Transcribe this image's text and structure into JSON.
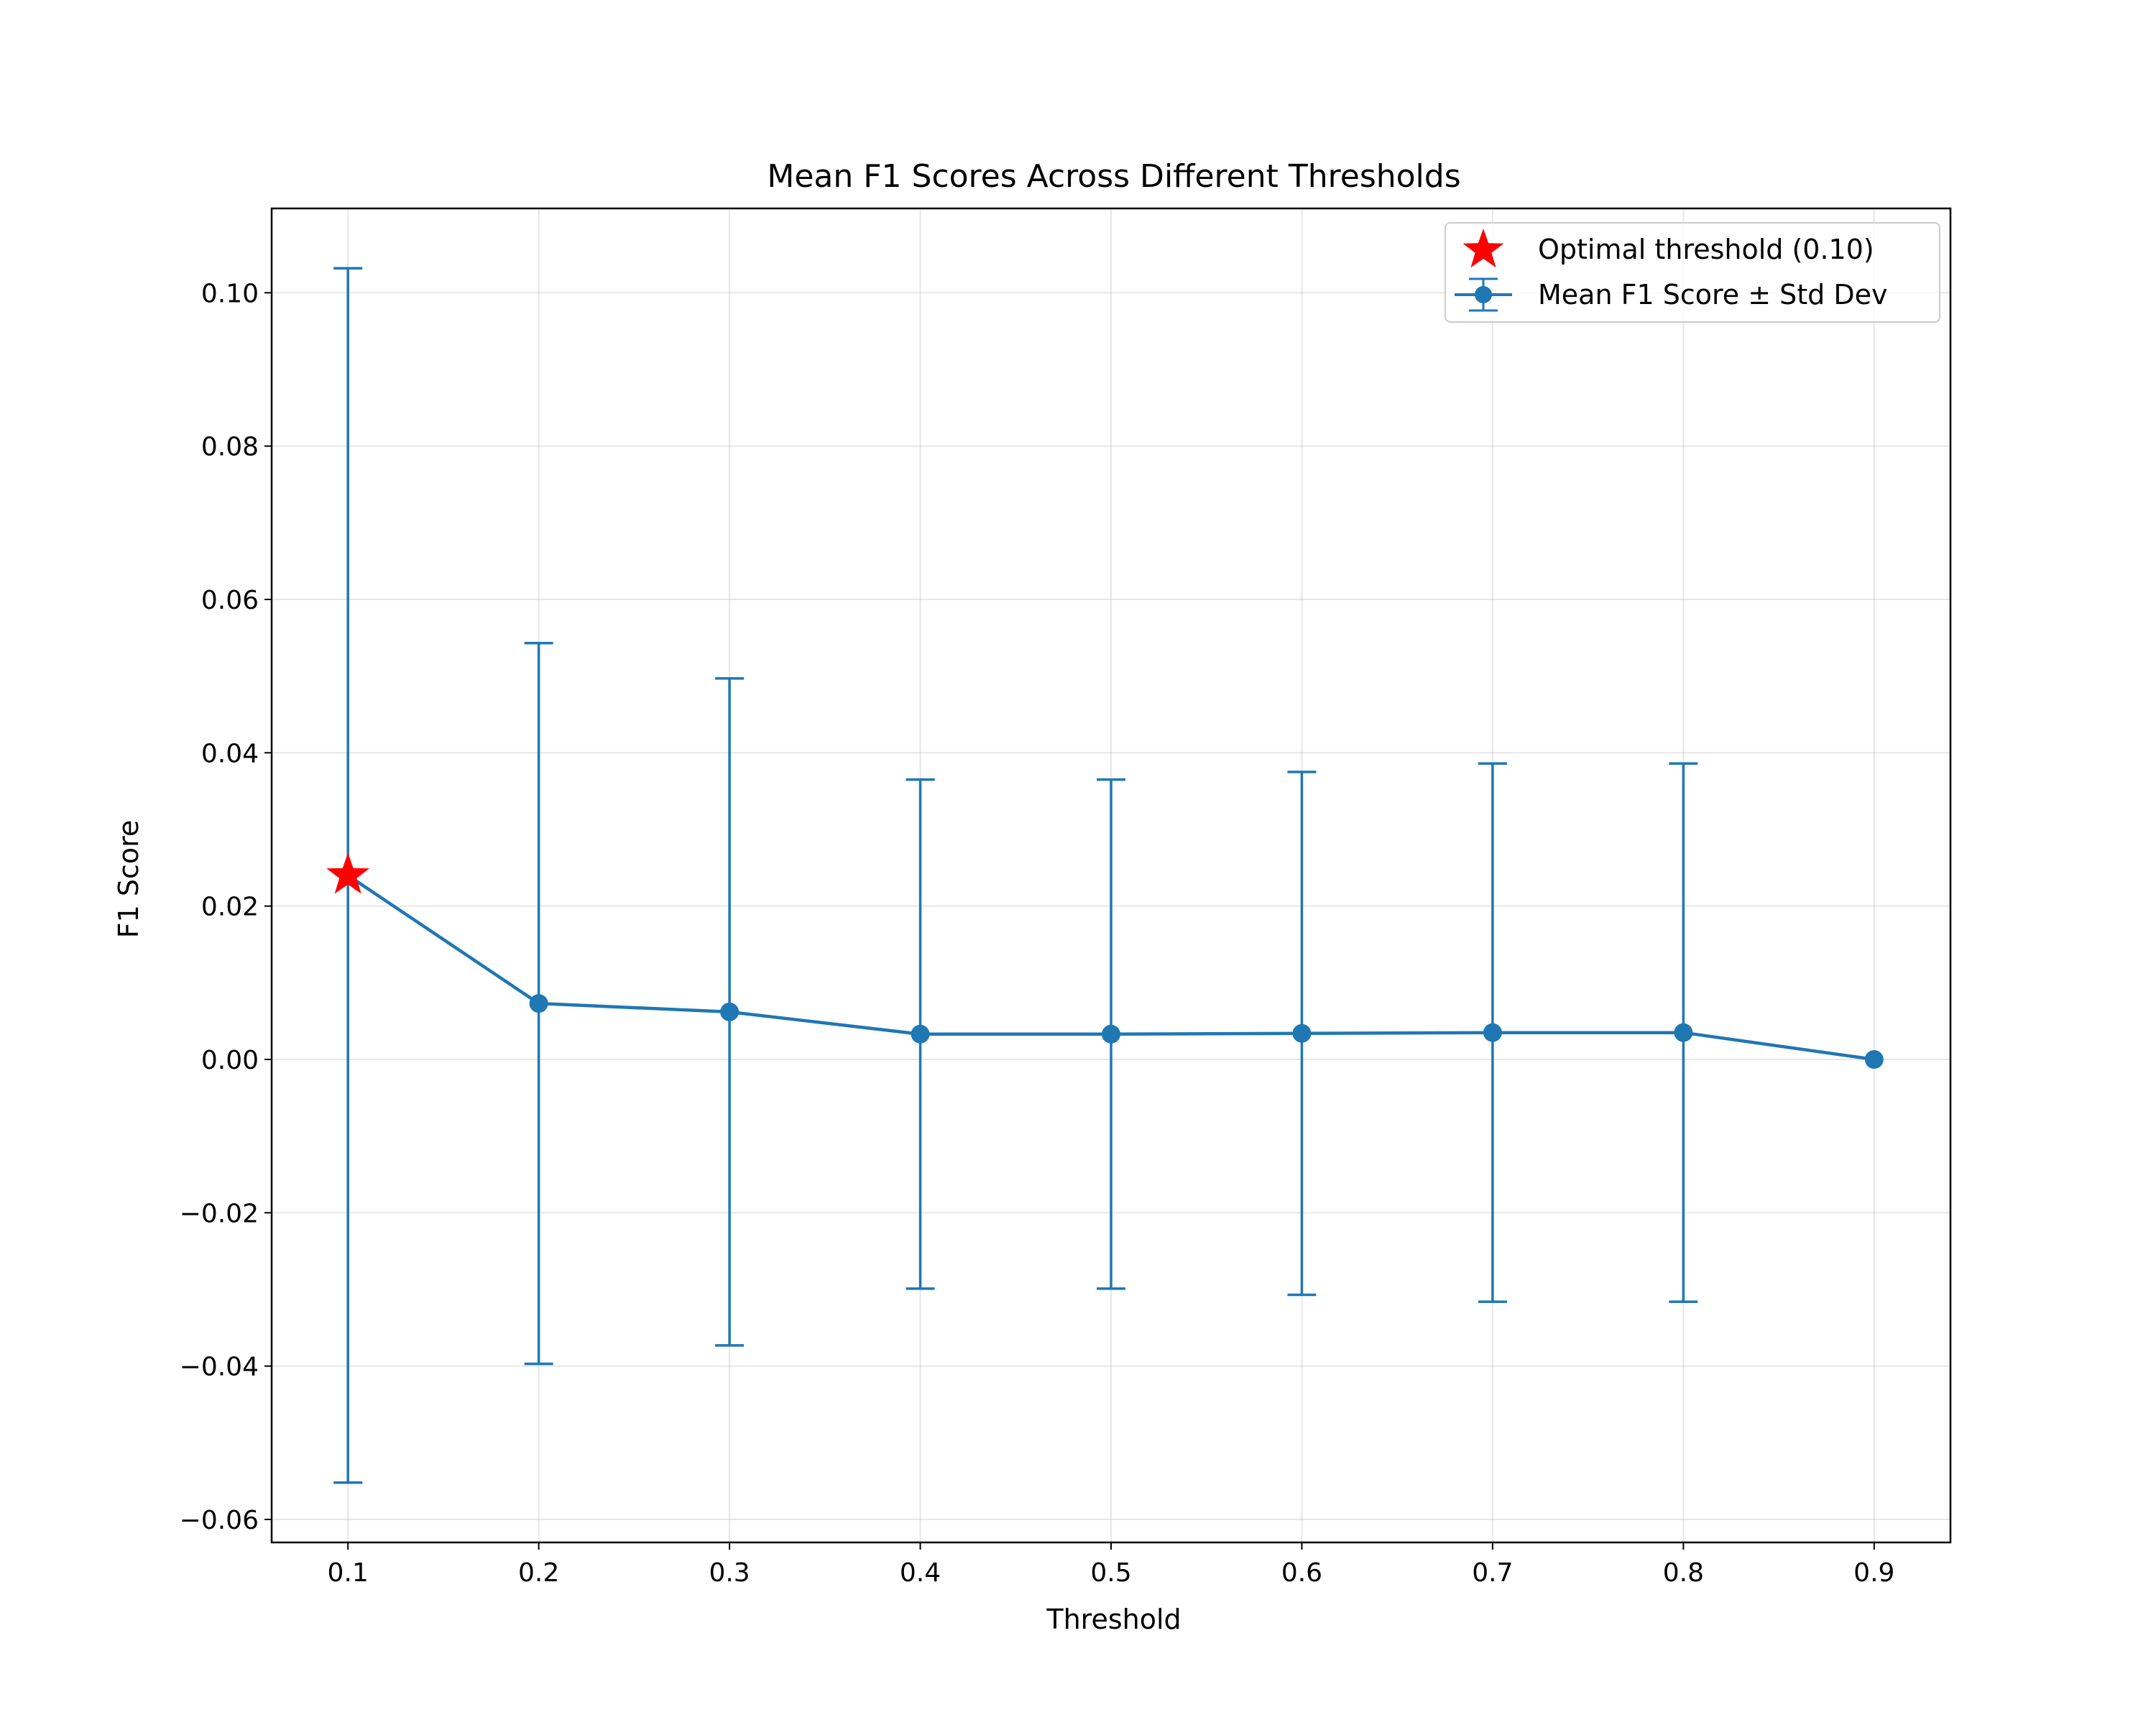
{
  "chart_data": {
    "type": "line",
    "title": "Mean F1 Scores Across Different Thresholds",
    "xlabel": "Threshold",
    "ylabel": "F1 Score",
    "x": [
      0.1,
      0.2,
      0.3,
      0.4,
      0.5,
      0.6,
      0.7,
      0.8,
      0.9
    ],
    "xlim": [
      0.06,
      0.94
    ],
    "ylim": [
      -0.063,
      0.111
    ],
    "x_ticks": [
      "0.1",
      "0.2",
      "0.3",
      "0.4",
      "0.5",
      "0.6",
      "0.7",
      "0.8",
      "0.9"
    ],
    "y_ticks": [
      {
        "value": 0.1,
        "label": "0.10"
      },
      {
        "value": 0.08,
        "label": "0.08"
      },
      {
        "value": 0.06,
        "label": "0.06"
      },
      {
        "value": 0.04,
        "label": "0.04"
      },
      {
        "value": 0.02,
        "label": "0.02"
      },
      {
        "value": 0.0,
        "label": "0.00"
      },
      {
        "value": -0.02,
        "label": "−0.02"
      },
      {
        "value": -0.04,
        "label": "−0.04"
      },
      {
        "value": -0.06,
        "label": "−0.06"
      }
    ],
    "series": [
      {
        "name": "Mean F1 Score ± Std Dev",
        "color": "#1f77b4",
        "values": [
          0.024,
          0.0073,
          0.0062,
          0.0033,
          0.0033,
          0.0034,
          0.0035,
          0.0035,
          0.0
        ],
        "std": [
          0.0792,
          0.047,
          0.0435,
          0.0332,
          0.0332,
          0.0341,
          0.0351,
          0.0351,
          0.0
        ]
      }
    ],
    "optimal": {
      "name": "Optimal threshold (0.10)",
      "x": 0.1,
      "y": 0.024,
      "color": "#ff0000"
    },
    "grid": true,
    "legend_position": "top-right"
  }
}
